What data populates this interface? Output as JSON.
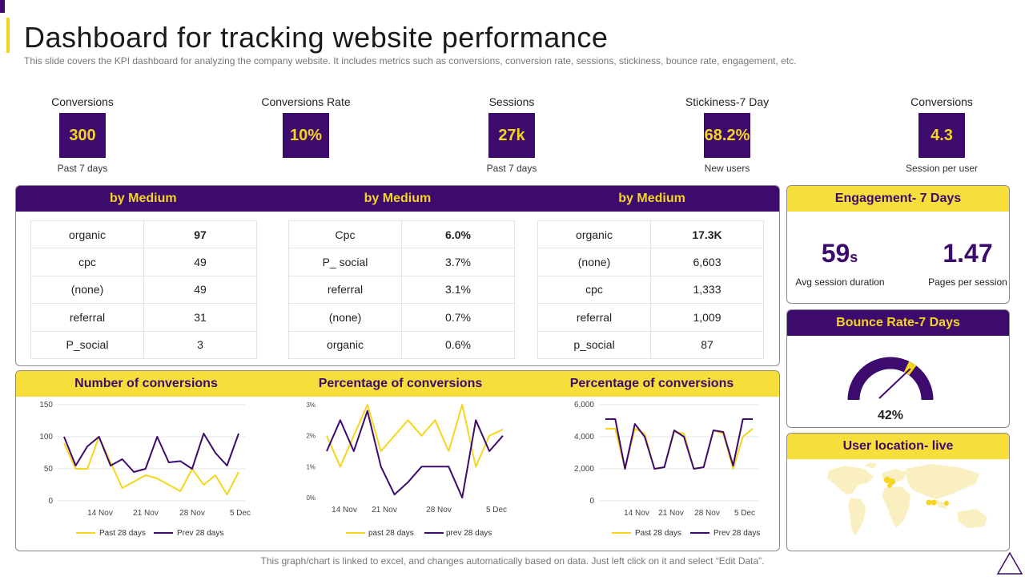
{
  "page": {
    "title": "Dashboard for tracking website performance",
    "subtitle": "This slide covers the KPI dashboard for analyzing the company website. It includes metrics such as conversions, conversion rate, sessions, stickiness, bounce rate, engagement, etc.",
    "footnote": "This graph/chart is linked to excel,  and changes automatically based on data. Just left click on it and select “Edit Data”."
  },
  "colors": {
    "purple": "#3d0a6e",
    "yellow": "#f6d51f",
    "yellow_light": "#f6df3a"
  },
  "kpis": [
    {
      "label": "Conversions",
      "value": "300",
      "sub": "Past 7 days"
    },
    {
      "label": "Conversions Rate",
      "value": "10%",
      "sub": ""
    },
    {
      "label": "Sessions",
      "value": "27k",
      "sub": "Past 7 days"
    },
    {
      "label": "Stickiness-7 Day",
      "value": "68.2%",
      "sub": "New users"
    },
    {
      "label": "Conversions",
      "value": "4.3",
      "sub": "Session per user"
    }
  ],
  "medium": {
    "headers": [
      "by Medium",
      "by Medium",
      "by Medium"
    ],
    "tables": [
      [
        [
          "organic",
          "97"
        ],
        [
          "cpc",
          "49"
        ],
        [
          "(none)",
          "49"
        ],
        [
          "referral",
          "31"
        ],
        [
          "P_social",
          "3"
        ]
      ],
      [
        [
          "Cpc",
          "6.0%"
        ],
        [
          "P_ social",
          "3.7%"
        ],
        [
          "referral",
          "3.1%"
        ],
        [
          "(none)",
          "0.7%"
        ],
        [
          "organic",
          "0.6%"
        ]
      ],
      [
        [
          "organic",
          "17.3K"
        ],
        [
          "(none)",
          "6,603"
        ],
        [
          "cpc",
          "1,333"
        ],
        [
          "referral",
          "1,009"
        ],
        [
          "p_social",
          "87"
        ]
      ]
    ]
  },
  "engagement": {
    "title": "Engagement- 7 Days",
    "duration_value": "59",
    "duration_unit": "s",
    "duration_label": "Avg  session duration",
    "pages_value": "1.47",
    "pages_label": "Pages per session"
  },
  "bounce": {
    "title": "Bounce Rate-7 Days",
    "value_label": "42%",
    "value": 0.42
  },
  "location": {
    "title": "User location- live"
  },
  "chart_headers": [
    "Number of conversions",
    "Percentage of conversions",
    "Percentage of conversions"
  ],
  "chart_data": [
    {
      "type": "line",
      "title": "Number of conversions",
      "x_ticks": [
        "14 Nov",
        "21 Nov",
        "28 Nov",
        "5 Dec"
      ],
      "y_ticks": [
        "150",
        "100",
        "50",
        "0"
      ],
      "ylim": [
        0,
        150
      ],
      "grid": true,
      "legend_position": "bottom",
      "series": [
        {
          "name": "Past 28 days",
          "color": "#f6d51f",
          "values": [
            90,
            50,
            50,
            100,
            60,
            20,
            30,
            40,
            35,
            25,
            15,
            50,
            25,
            40,
            10,
            45
          ]
        },
        {
          "name": "Prev 28 days",
          "color": "#3d0a6e",
          "values": [
            100,
            55,
            85,
            100,
            55,
            65,
            45,
            50,
            100,
            60,
            62,
            50,
            105,
            75,
            55,
            105
          ]
        }
      ]
    },
    {
      "type": "line",
      "title": "Percentage of conversions",
      "x_ticks": [
        "14 Nov",
        "21 Nov",
        "28 Nov",
        "5 Dec"
      ],
      "y_ticks": [
        "3%",
        "2%",
        "1%",
        "0%"
      ],
      "ylim": [
        0,
        3
      ],
      "grid": false,
      "legend_position": "bottom",
      "series": [
        {
          "name": "past 28 days",
          "color": "#f6d51f",
          "values": [
            2.0,
            1.0,
            2.0,
            3.0,
            1.5,
            2.0,
            2.5,
            2.0,
            2.5,
            1.5,
            3.0,
            1.0,
            2.0,
            2.2
          ]
        },
        {
          "name": "prev 28 days",
          "color": "#3d0a6e",
          "values": [
            1.5,
            2.5,
            1.5,
            2.8,
            1.0,
            0.1,
            0.5,
            1.0,
            1.0,
            1.0,
            0.0,
            2.5,
            1.5,
            2.0
          ]
        }
      ]
    },
    {
      "type": "line",
      "title": "Percentage of conversions",
      "x_ticks": [
        "14 Nov",
        "21 Nov",
        "28 Nov",
        "5 Dec"
      ],
      "y_ticks": [
        "6,000",
        "4,000",
        "2,000",
        "0"
      ],
      "ylim": [
        0,
        6000
      ],
      "grid": true,
      "legend_position": "bottom",
      "series": [
        {
          "name": "Past 28 days",
          "color": "#f6d51f",
          "values": [
            4500,
            4500,
            2000,
            4500,
            4200,
            2000,
            2100,
            4300,
            4200,
            2000,
            2100,
            4400,
            4200,
            2000,
            4000,
            4500
          ]
        },
        {
          "name": "Prev 28 days",
          "color": "#3d0a6e",
          "values": [
            5100,
            5100,
            2000,
            4800,
            4000,
            2000,
            2100,
            4400,
            4000,
            2000,
            2100,
            4400,
            4300,
            2200,
            5100,
            5100
          ]
        }
      ]
    }
  ]
}
